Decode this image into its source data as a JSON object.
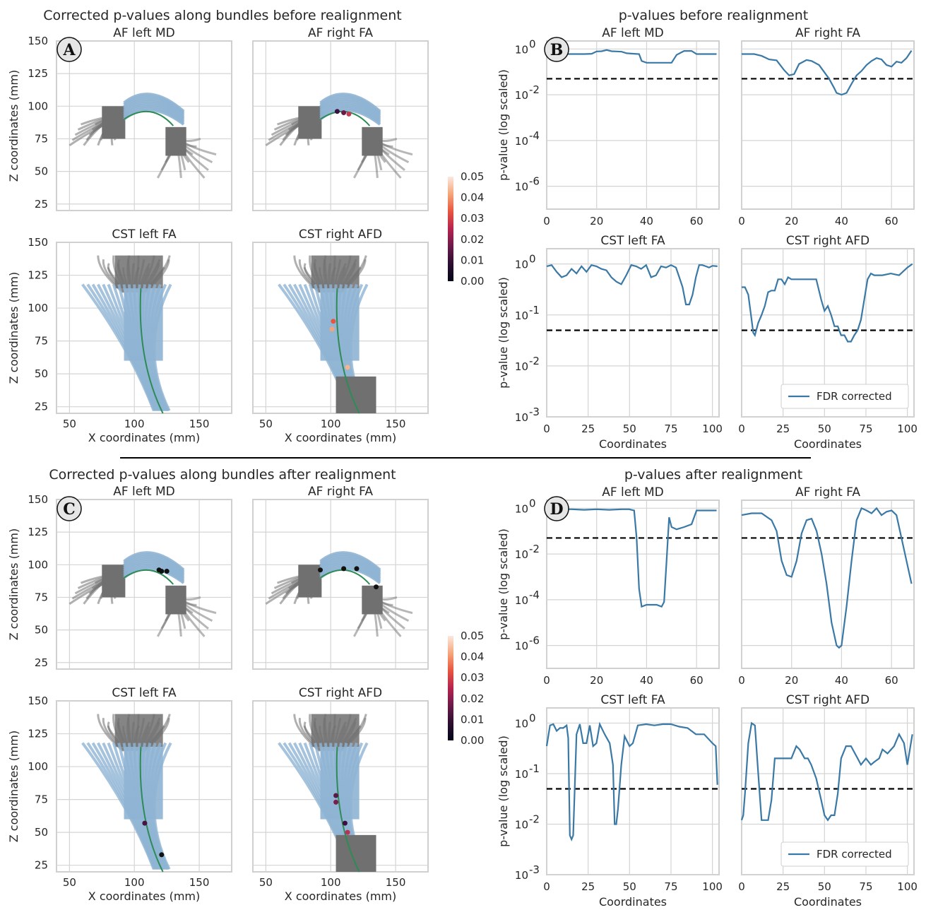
{
  "figure": {
    "headings": {
      "A": "Corrected p-values along bundles before realignment",
      "B": "p-values before realignment",
      "C": "Corrected p-values along bundles after realignment",
      "D": "p-values after realignment"
    },
    "badges": [
      "A",
      "B",
      "C",
      "D"
    ],
    "colorbar": {
      "ticks": [
        "0.05",
        "0.04",
        "0.03",
        "0.02",
        "0.01",
        "0.00"
      ]
    },
    "legend_label": "FDR corrected",
    "bundle_axes": {
      "xlabel": "X coordinates (mm)",
      "ylabel": "Z coordinates (mm)",
      "xticks": [
        "50",
        "100",
        "150"
      ],
      "yticks": [
        "150",
        "125",
        "100",
        "75",
        "50",
        "25"
      ]
    },
    "pvalue_axes": {
      "xlabel": "Coordinates",
      "ylabel": "p-value (log scaled)",
      "af_xticks": [
        "0",
        "20",
        "40",
        "60"
      ],
      "cst_xticks": [
        "0",
        "25",
        "50",
        "75",
        "100"
      ],
      "af_yticks": [
        "10",
        "10",
        "10",
        "10"
      ],
      "af_yexp": [
        "0",
        "-2",
        "-4",
        "-6"
      ],
      "cst_yticks": [
        "10",
        "10",
        "10",
        "10"
      ],
      "cst_yexp": [
        "0",
        "-1",
        "-2",
        "-3"
      ]
    }
  },
  "colors": {
    "bundle_fiber": "#8fb4d3",
    "dark_fiber": "#707070",
    "centerline": "#2e8b57",
    "pline": "#3a79a6",
    "threshold": "#000000",
    "grid": "#d4d4d4"
  },
  "chart_data": [
    {
      "type": "line",
      "panel": "B",
      "title": "AF left MD",
      "ylabel": "p-value (log scaled)",
      "xlabel": "",
      "log_y": true,
      "xlim": [
        0,
        69
      ],
      "ylim_log10": [
        -7,
        0.35
      ],
      "threshold": 0.05,
      "x": [
        0,
        5,
        10,
        15,
        18,
        20,
        22,
        24,
        26,
        28,
        30,
        32,
        35,
        37,
        38,
        40,
        45,
        50,
        52,
        55,
        58,
        60,
        62,
        65,
        68
      ],
      "y": [
        0.6,
        0.6,
        0.6,
        0.6,
        0.62,
        0.78,
        0.8,
        0.9,
        0.8,
        0.78,
        0.76,
        0.65,
        0.62,
        0.6,
        0.3,
        0.25,
        0.25,
        0.25,
        0.55,
        0.82,
        0.82,
        0.6,
        0.6,
        0.6,
        0.6
      ]
    },
    {
      "type": "line",
      "panel": "B",
      "title": "AF right FA",
      "ylabel": "",
      "xlabel": "",
      "log_y": true,
      "xlim": [
        0,
        69
      ],
      "ylim_log10": [
        -7,
        0.35
      ],
      "threshold": 0.05,
      "x": [
        0,
        5,
        8,
        11,
        14,
        17,
        19,
        21,
        23,
        26,
        28,
        31,
        33,
        35,
        37,
        38,
        40,
        42,
        44,
        46,
        48,
        50,
        52,
        54,
        56,
        58,
        60,
        62,
        64,
        66,
        68
      ],
      "y": [
        0.6,
        0.6,
        0.5,
        0.35,
        0.32,
        0.12,
        0.07,
        0.08,
        0.22,
        0.33,
        0.3,
        0.2,
        0.1,
        0.05,
        0.02,
        0.012,
        0.01,
        0.012,
        0.03,
        0.07,
        0.11,
        0.2,
        0.3,
        0.4,
        0.35,
        0.2,
        0.17,
        0.28,
        0.25,
        0.4,
        0.85
      ]
    },
    {
      "type": "line",
      "panel": "B",
      "title": "CST left FA",
      "ylabel": "p-value (log scaled)",
      "xlabel": "",
      "log_y": true,
      "xlim": [
        0,
        104
      ],
      "ylim_log10": [
        -3,
        0.3
      ],
      "threshold": 0.05,
      "x": [
        0,
        3,
        6,
        9,
        12,
        15,
        18,
        21,
        24,
        27,
        30,
        33,
        36,
        39,
        42,
        45,
        48,
        51,
        54,
        57,
        60,
        63,
        66,
        69,
        72,
        75,
        78,
        80,
        82,
        84,
        86,
        88,
        90,
        92,
        94,
        96,
        98,
        100,
        103
      ],
      "y": [
        0.9,
        0.95,
        0.7,
        0.55,
        0.6,
        0.8,
        0.65,
        0.9,
        0.7,
        0.95,
        0.9,
        0.8,
        0.75,
        0.55,
        0.45,
        0.4,
        0.6,
        0.95,
        0.9,
        0.8,
        0.95,
        0.55,
        0.6,
        0.9,
        0.85,
        0.95,
        0.85,
        0.55,
        0.35,
        0.16,
        0.16,
        0.25,
        0.55,
        0.95,
        0.95,
        0.9,
        0.85,
        0.92,
        0.9
      ]
    },
    {
      "type": "line",
      "panel": "B",
      "title": "CST right AFD",
      "ylabel": "",
      "xlabel": "",
      "log_y": true,
      "xlim": [
        0,
        104
      ],
      "ylim_log10": [
        -3,
        0.3
      ],
      "threshold": 0.05,
      "x": [
        0,
        2,
        4,
        6,
        7,
        8,
        10,
        12,
        14,
        16,
        18,
        20,
        22,
        24,
        26,
        28,
        30,
        35,
        40,
        45,
        48,
        50,
        52,
        54,
        56,
        58,
        60,
        62,
        64,
        66,
        68,
        70,
        72,
        74,
        76,
        78,
        80,
        85,
        90,
        95,
        100,
        103
      ],
      "y": [
        0.35,
        0.35,
        0.25,
        0.08,
        0.045,
        0.04,
        0.07,
        0.1,
        0.15,
        0.28,
        0.3,
        0.3,
        0.5,
        0.5,
        0.4,
        0.55,
        0.5,
        0.5,
        0.5,
        0.5,
        0.2,
        0.12,
        0.15,
        0.1,
        0.06,
        0.06,
        0.04,
        0.04,
        0.03,
        0.03,
        0.04,
        0.05,
        0.08,
        0.2,
        0.5,
        0.65,
        0.6,
        0.6,
        0.65,
        0.6,
        0.85,
        1.0
      ]
    },
    {
      "type": "line",
      "panel": "D",
      "title": "AF left MD",
      "ylabel": "p-value (log scaled)",
      "xlabel": "",
      "log_y": true,
      "xlim": [
        0,
        69
      ],
      "ylim_log10": [
        -7,
        0.35
      ],
      "threshold": 0.05,
      "x": [
        0,
        5,
        10,
        15,
        20,
        25,
        30,
        33,
        35,
        36,
        37,
        38,
        40,
        42,
        44,
        46,
        47,
        48,
        49,
        50,
        52,
        55,
        58,
        60,
        65,
        68
      ],
      "y": [
        0.9,
        0.9,
        0.9,
        0.85,
        0.9,
        0.85,
        0.9,
        0.9,
        0.8,
        0.05,
        0.0003,
        5e-05,
        6e-05,
        6e-05,
        6e-05,
        5e-05,
        8e-05,
        0.005,
        0.4,
        0.15,
        0.12,
        0.15,
        0.2,
        0.8,
        0.8,
        0.8
      ]
    },
    {
      "type": "line",
      "panel": "D",
      "title": "AF right FA",
      "ylabel": "",
      "xlabel": "",
      "log_y": true,
      "xlim": [
        0,
        69
      ],
      "ylim_log10": [
        -7,
        0.35
      ],
      "threshold": 0.05,
      "x": [
        0,
        4,
        8,
        12,
        14,
        16,
        18,
        20,
        22,
        24,
        26,
        28,
        30,
        32,
        34,
        36,
        38,
        39,
        40,
        42,
        44,
        46,
        48,
        50,
        52,
        54,
        56,
        58,
        60,
        62,
        64,
        66,
        68
      ],
      "y": [
        0.5,
        0.6,
        0.6,
        0.3,
        0.1,
        0.005,
        0.0012,
        0.001,
        0.005,
        0.08,
        0.3,
        0.35,
        0.1,
        0.01,
        0.0005,
        1e-05,
        1e-06,
        8e-07,
        1e-06,
        5e-05,
        0.005,
        0.3,
        1.0,
        0.8,
        0.6,
        1.0,
        0.5,
        0.7,
        0.8,
        0.5,
        0.05,
        0.005,
        0.0005
      ]
    },
    {
      "type": "line",
      "panel": "D",
      "title": "CST left FA",
      "ylabel": "p-value (log scaled)",
      "xlabel": "",
      "log_y": true,
      "xlim": [
        0,
        104
      ],
      "ylim_log10": [
        -3,
        0.3
      ],
      "threshold": 0.05,
      "x": [
        0,
        2,
        4,
        6,
        8,
        10,
        12,
        13,
        14,
        15,
        16,
        18,
        20,
        22,
        24,
        26,
        28,
        30,
        32,
        35,
        38,
        40,
        41,
        42,
        43,
        45,
        47,
        50,
        52,
        55,
        60,
        65,
        70,
        75,
        80,
        85,
        90,
        95,
        100,
        102,
        103
      ],
      "y": [
        0.35,
        0.9,
        0.95,
        0.7,
        0.8,
        0.8,
        0.9,
        0.5,
        0.006,
        0.005,
        0.006,
        0.6,
        0.95,
        0.4,
        0.4,
        0.9,
        0.35,
        0.4,
        0.95,
        0.6,
        0.4,
        0.15,
        0.01,
        0.01,
        0.02,
        0.15,
        0.55,
        0.35,
        0.4,
        0.9,
        0.95,
        0.9,
        0.95,
        0.95,
        0.85,
        0.8,
        0.6,
        0.6,
        0.4,
        0.35,
        0.06
      ]
    },
    {
      "type": "line",
      "panel": "D",
      "title": "CST right AFD",
      "ylabel": "",
      "xlabel": "",
      "log_y": true,
      "xlim": [
        0,
        104
      ],
      "ylim_log10": [
        -3,
        0.3
      ],
      "threshold": 0.05,
      "x": [
        0,
        1,
        2,
        4,
        6,
        8,
        10,
        12,
        14,
        16,
        18,
        20,
        22,
        25,
        30,
        33,
        35,
        38,
        40,
        42,
        45,
        48,
        50,
        52,
        54,
        56,
        58,
        60,
        63,
        66,
        70,
        72,
        75,
        78,
        80,
        83,
        85,
        88,
        92,
        95,
        98,
        100,
        103
      ],
      "y": [
        0.012,
        0.015,
        0.04,
        0.4,
        1.0,
        0.9,
        0.1,
        0.012,
        0.012,
        0.012,
        0.03,
        0.2,
        0.2,
        0.2,
        0.2,
        0.35,
        0.3,
        0.2,
        0.2,
        0.15,
        0.08,
        0.03,
        0.015,
        0.012,
        0.015,
        0.015,
        0.04,
        0.2,
        0.35,
        0.35,
        0.2,
        0.15,
        0.2,
        0.15,
        0.17,
        0.2,
        0.3,
        0.25,
        0.35,
        0.6,
        0.4,
        0.15,
        0.6
      ]
    }
  ]
}
